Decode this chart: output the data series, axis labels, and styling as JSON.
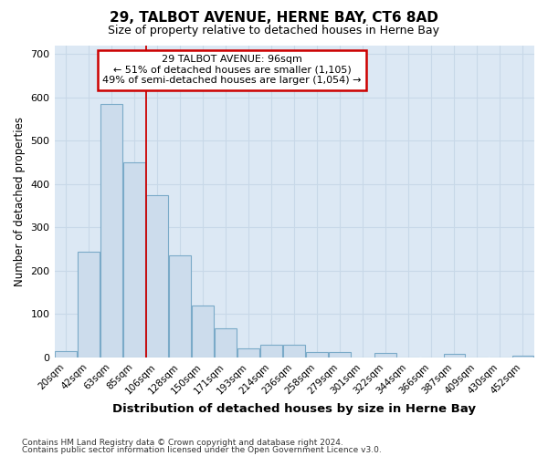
{
  "title": "29, TALBOT AVENUE, HERNE BAY, CT6 8AD",
  "subtitle": "Size of property relative to detached houses in Herne Bay",
  "xlabel": "Distribution of detached houses by size in Herne Bay",
  "ylabel": "Number of detached properties",
  "categories": [
    "20sqm",
    "42sqm",
    "63sqm",
    "85sqm",
    "106sqm",
    "128sqm",
    "150sqm",
    "171sqm",
    "193sqm",
    "214sqm",
    "236sqm",
    "258sqm",
    "279sqm",
    "301sqm",
    "322sqm",
    "344sqm",
    "366sqm",
    "387sqm",
    "409sqm",
    "430sqm",
    "452sqm"
  ],
  "values": [
    15,
    245,
    585,
    450,
    375,
    235,
    120,
    68,
    20,
    30,
    30,
    12,
    12,
    0,
    10,
    0,
    0,
    8,
    0,
    0,
    5
  ],
  "bar_color": "#ccdcec",
  "bar_edge_color": "#7aaac8",
  "red_line_x": 3.5,
  "annotation_text": "29 TALBOT AVENUE: 96sqm\n← 51% of detached houses are smaller (1,105)\n49% of semi-detached houses are larger (1,054) →",
  "annotation_box_color": "#ffffff",
  "annotation_box_edge": "#cc0000",
  "ylim": [
    0,
    720
  ],
  "yticks": [
    0,
    100,
    200,
    300,
    400,
    500,
    600,
    700
  ],
  "grid_color": "#c8d8e8",
  "plot_bg_color": "#dce8f4",
  "fig_bg_color": "#ffffff",
  "footer1": "Contains HM Land Registry data © Crown copyright and database right 2024.",
  "footer2": "Contains public sector information licensed under the Open Government Licence v3.0."
}
